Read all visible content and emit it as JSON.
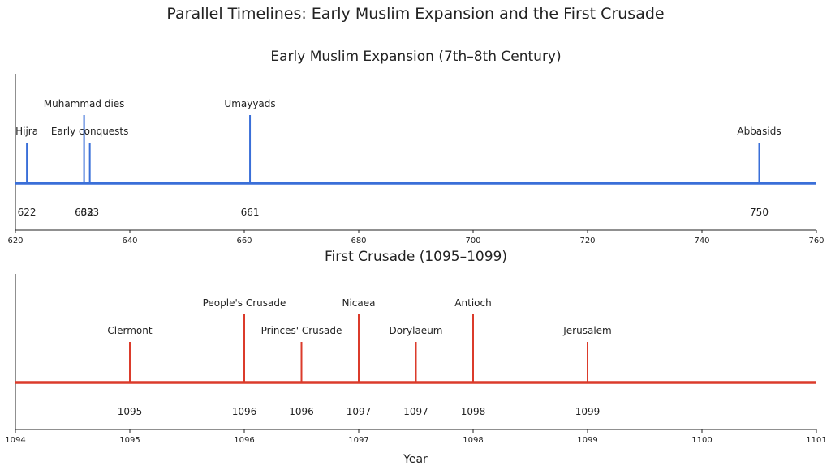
{
  "title": "Parallel Timelines: Early Muslim Expansion and the First Crusade",
  "shared_xlabel": "Year",
  "chart_data": [
    {
      "type": "timeline",
      "title": "Early Muslim Expansion (7th–8th Century)",
      "color": "#3a6fd8",
      "xlim": [
        620,
        760
      ],
      "xticks": [
        620,
        640,
        660,
        680,
        700,
        720,
        740,
        760
      ],
      "grid": false,
      "events": [
        {
          "x": 622,
          "year_label": "622",
          "label": "Hijra",
          "level": 1
        },
        {
          "x": 632,
          "year_label": "632",
          "label": "Muhammad dies",
          "level": 2
        },
        {
          "x": 633,
          "year_label": "633",
          "label": "Early conquests",
          "level": 1
        },
        {
          "x": 661,
          "year_label": "661",
          "label": "Umayyads",
          "level": 2
        },
        {
          "x": 750,
          "year_label": "750",
          "label": "Abbasids",
          "level": 1
        }
      ]
    },
    {
      "type": "timeline",
      "title": "First Crusade (1095–1099)",
      "color": "#db3b2b",
      "xlim": [
        1094,
        1101
      ],
      "xticks": [
        1094,
        1095,
        1096,
        1097,
        1098,
        1099,
        1100,
        1101
      ],
      "grid": false,
      "events": [
        {
          "x": 1095.0,
          "year_label": "1095",
          "label": "Clermont",
          "level": 1
        },
        {
          "x": 1096.0,
          "year_label": "1096",
          "label": "People's Crusade",
          "level": 2
        },
        {
          "x": 1096.5,
          "year_label": "1096",
          "label": "Princes' Crusade",
          "level": 1
        },
        {
          "x": 1097.0,
          "year_label": "1097",
          "label": "Nicaea",
          "level": 2
        },
        {
          "x": 1097.5,
          "year_label": "1097",
          "label": "Dorylaeum",
          "level": 1
        },
        {
          "x": 1098.0,
          "year_label": "1098",
          "label": "Antioch",
          "level": 2
        },
        {
          "x": 1099.0,
          "year_label": "1099",
          "label": "Jerusalem",
          "level": 1
        }
      ]
    }
  ]
}
